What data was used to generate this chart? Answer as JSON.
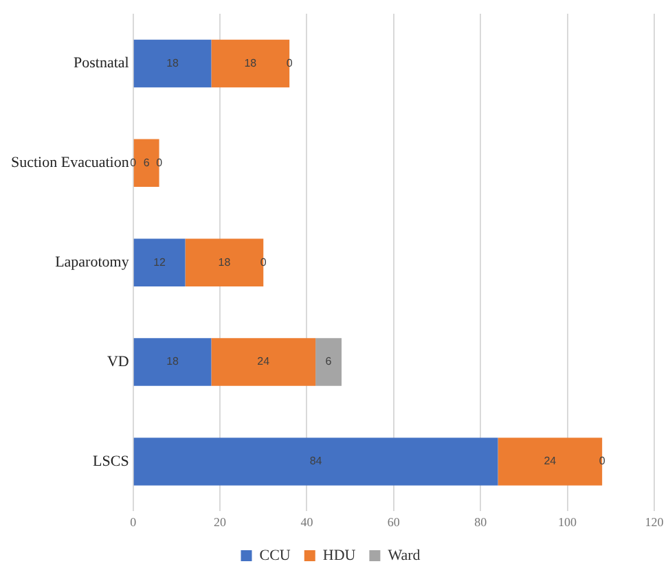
{
  "chart_data": {
    "type": "bar",
    "orientation": "horizontal",
    "stacked": true,
    "categories": [
      "Postnatal",
      "Suction Evacuation",
      "Laparotomy",
      "VD",
      "LSCS"
    ],
    "series": [
      {
        "name": "CCU",
        "color": "#4472c4",
        "values": [
          18,
          0,
          12,
          18,
          84
        ]
      },
      {
        "name": "HDU",
        "color": "#ed7d31",
        "values": [
          18,
          6,
          18,
          24,
          24
        ]
      },
      {
        "name": "Ward",
        "color": "#a5a5a5",
        "values": [
          0,
          0,
          0,
          6,
          0
        ]
      }
    ],
    "xlim": [
      0,
      120
    ],
    "xticks": [
      0,
      20,
      40,
      60,
      80,
      100,
      120
    ],
    "grid": "x",
    "legend": "bottom",
    "data_labels": true
  }
}
